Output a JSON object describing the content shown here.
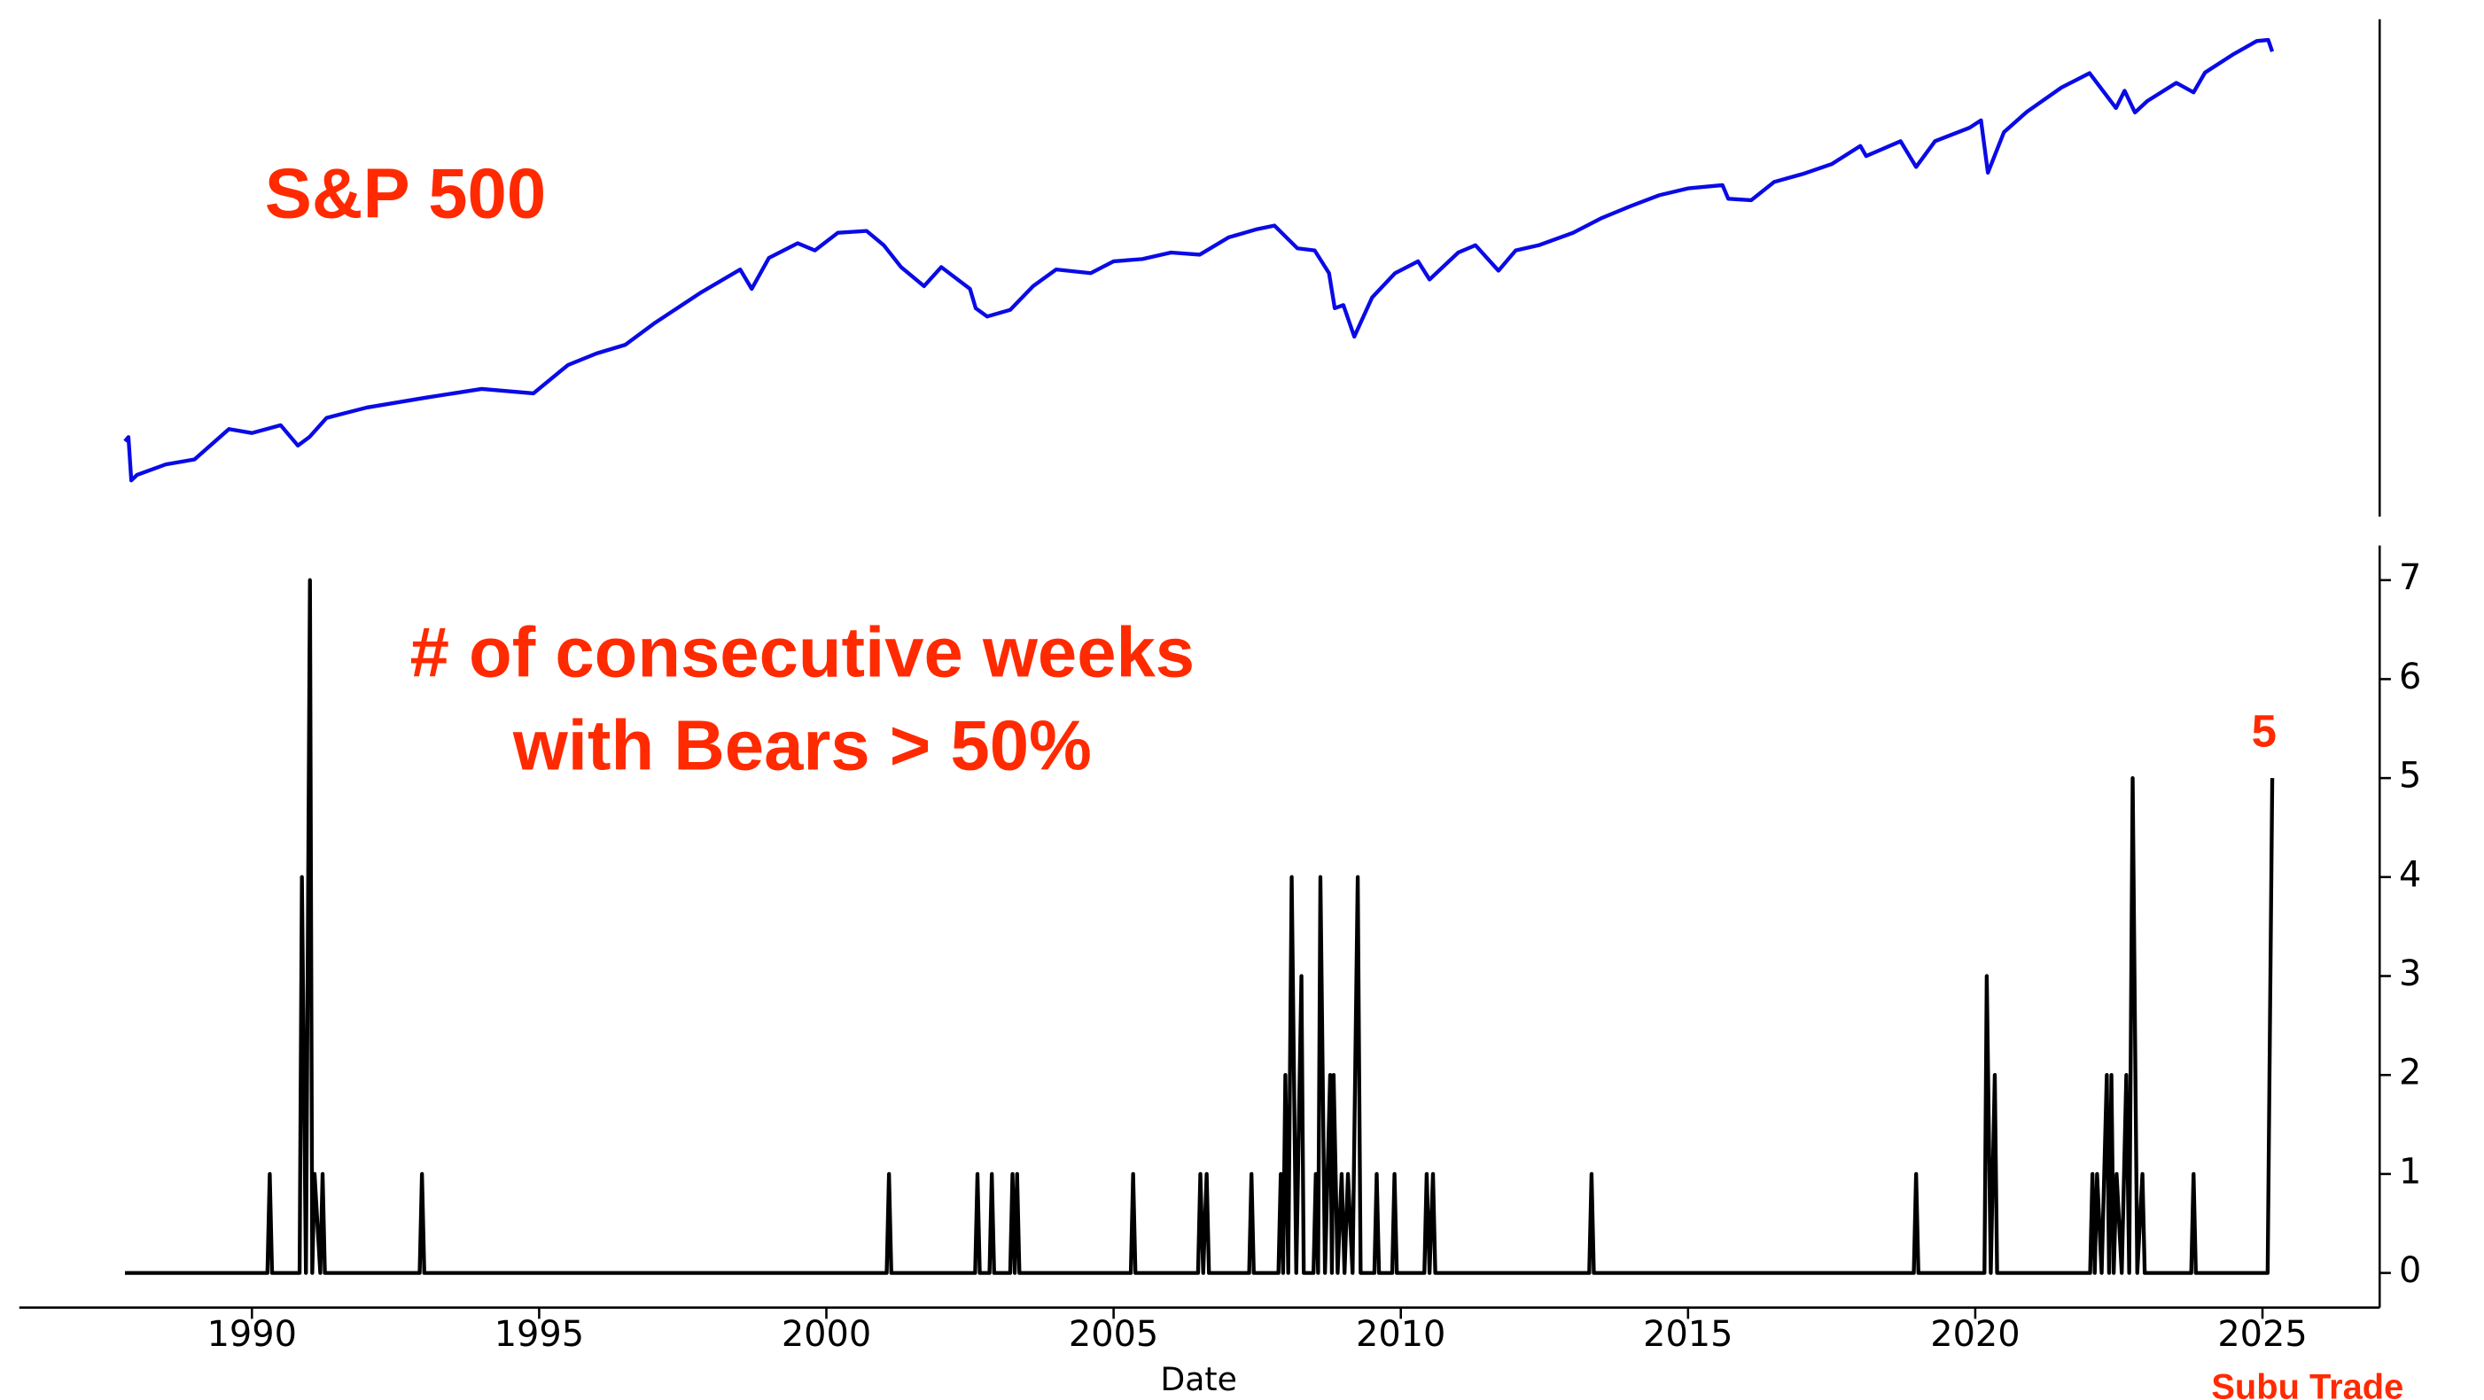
{
  "chart_data": [
    {
      "type": "line",
      "title": "S&P 500",
      "log_scale": true,
      "color": "#0a0ae6",
      "xlim": [
        1985.95,
        2027.04
      ],
      "ylim": [
        184,
        7100
      ],
      "x": [
        1987.79,
        1987.85,
        1987.9,
        1988.0,
        1988.5,
        1989.0,
        1989.6,
        1990.0,
        1990.5,
        1990.8,
        1991.0,
        1991.3,
        1992,
        1993,
        1994,
        1994.9,
        1995.5,
        1996,
        1996.5,
        1997,
        1997.8,
        1998.5,
        1998.7,
        1999,
        1999.5,
        1999.8,
        2000.2,
        2000.7,
        2001.0,
        2001.3,
        2001.7,
        2002.0,
        2002.5,
        2002.6,
        2002.8,
        2003.2,
        2003.6,
        2004,
        2004.6,
        2005,
        2005.5,
        2006,
        2006.5,
        2007,
        2007.5,
        2007.8,
        2008.2,
        2008.5,
        2008.75,
        2008.85,
        2009.0,
        2009.19,
        2009.5,
        2009.9,
        2010.3,
        2010.5,
        2011.0,
        2011.3,
        2011.7,
        2012,
        2012.4,
        2013,
        2013.5,
        2014,
        2014.5,
        2015,
        2015.6,
        2015.7,
        2016.1,
        2016.5,
        2017,
        2017.5,
        2018.0,
        2018.1,
        2018.7,
        2018.97,
        2019.3,
        2019.9,
        2020.1,
        2020.22,
        2020.5,
        2020.9,
        2021.5,
        2021.99,
        2022.45,
        2022.6,
        2022.78,
        2023,
        2023.5,
        2023.8,
        2024,
        2024.5,
        2024.9,
        2025.1,
        2025.17
      ],
      "values": [
        320,
        330,
        240,
        250,
        270,
        280,
        350,
        340,
        360,
        310,
        330,
        380,
        410,
        440,
        470,
        455,
        560,
        610,
        650,
        760,
        950,
        1130,
        980,
        1230,
        1370,
        1300,
        1480,
        1500,
        1350,
        1150,
        1000,
        1150,
        980,
        850,
        800,
        840,
        1000,
        1130,
        1100,
        1200,
        1220,
        1280,
        1260,
        1430,
        1520,
        1560,
        1320,
        1300,
        1100,
        850,
        870,
        690,
        920,
        1100,
        1200,
        1050,
        1280,
        1350,
        1120,
        1300,
        1350,
        1480,
        1650,
        1800,
        1950,
        2050,
        2100,
        1900,
        1880,
        2150,
        2280,
        2450,
        2800,
        2600,
        2900,
        2400,
        2900,
        3200,
        3380,
        2300,
        3100,
        3600,
        4300,
        4780,
        3700,
        4200,
        3580,
        3900,
        4450,
        4150,
        4800,
        5500,
        6050,
        6100,
        5600
      ]
    },
    {
      "type": "line",
      "title": [
        "# of consecutive weeks",
        "with Bears > 50%"
      ],
      "xlabel": "Date",
      "annotation": "5",
      "source": "Subu Trade",
      "color": "#000000",
      "xlim": [
        1985.95,
        2027.04
      ],
      "ylim": [
        -0.35,
        7.35
      ],
      "xticks": [
        1990,
        1995,
        2000,
        2005,
        2010,
        2015,
        2020,
        2025
      ],
      "yticks": [
        0,
        1,
        2,
        3,
        4,
        5,
        6,
        7
      ],
      "x": [
        1987.79,
        1990.27,
        1990.31,
        1990.35,
        1990.83,
        1990.87,
        1990.94,
        1991.01,
        1991.05,
        1991.09,
        1991.19,
        1991.23,
        1991.27,
        1992.92,
        1992.96,
        1993.0,
        2001.05,
        2001.09,
        2001.13,
        2002.59,
        2002.63,
        2002.67,
        2002.84,
        2002.88,
        2002.92,
        2003.2,
        2003.24,
        2003.28,
        2003.32,
        2003.36,
        2005.3,
        2005.34,
        2005.38,
        2006.47,
        2006.51,
        2006.56,
        2006.62,
        2006.66,
        2007.36,
        2007.4,
        2007.44,
        2007.87,
        2007.91,
        2007.95,
        2007.99,
        2008.04,
        2008.1,
        2008.18,
        2008.27,
        2008.31,
        2008.48,
        2008.52,
        2008.56,
        2008.6,
        2008.68,
        2008.77,
        2008.8,
        2008.83,
        2008.9,
        2008.97,
        2009.02,
        2009.08,
        2009.16,
        2009.25,
        2009.3,
        2009.54,
        2009.58,
        2009.62,
        2009.85,
        2009.89,
        2009.93,
        2010.41,
        2010.45,
        2010.5,
        2010.56,
        2010.6,
        2013.28,
        2013.32,
        2013.36,
        2018.93,
        2018.97,
        2019.01,
        2020.16,
        2020.2,
        2020.27,
        2020.34,
        2020.38,
        2022.0,
        2022.04,
        2022.08,
        2022.12,
        2022.2,
        2022.29,
        2022.33,
        2022.37,
        2022.41,
        2022.46,
        2022.55,
        2022.63,
        2022.68,
        2022.74,
        2022.82,
        2022.91,
        2022.95,
        2023.76,
        2023.8,
        2023.84,
        2025.09,
        2025.17
      ],
      "values": [
        0,
        0,
        1,
        0,
        0,
        4,
        0,
        7,
        0,
        1,
        0,
        1,
        0,
        0,
        1,
        0,
        0,
        1,
        0,
        0,
        1,
        0,
        0,
        1,
        0,
        0,
        1,
        0,
        1,
        0,
        0,
        1,
        0,
        0,
        1,
        0,
        1,
        0,
        0,
        1,
        0,
        0,
        1,
        0,
        2,
        0,
        4,
        0,
        3,
        0,
        0,
        1,
        0,
        4,
        0,
        2,
        0,
        2,
        0,
        1,
        0,
        1,
        0,
        4,
        0,
        0,
        1,
        0,
        0,
        1,
        0,
        0,
        1,
        0,
        1,
        0,
        0,
        1,
        0,
        0,
        1,
        0,
        0,
        3,
        0,
        2,
        0,
        0,
        1,
        0,
        1,
        0,
        2,
        0,
        2,
        0,
        1,
        0,
        2,
        0,
        5,
        0,
        1,
        0,
        0,
        1,
        0,
        0,
        5
      ]
    }
  ]
}
